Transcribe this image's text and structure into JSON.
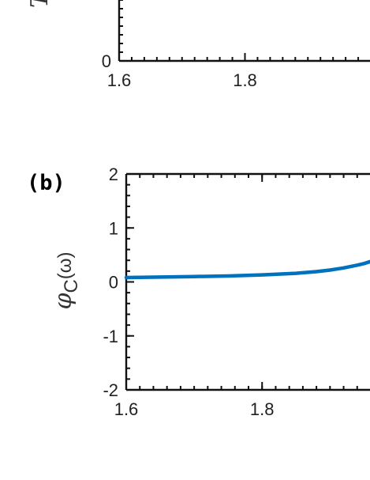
{
  "chart_data": [
    {
      "panel": "",
      "type": "line",
      "xlim": [
        1.6,
        2.0
      ],
      "ylim": [
        0,
        1
      ],
      "x_ticks": [
        {
          "value": 1.6,
          "label": "1.6"
        },
        {
          "value": 1.8,
          "label": "1.8"
        }
      ],
      "y_ticks": [
        {
          "value": 0,
          "label": "0"
        }
      ],
      "ylabel_fragment": "T",
      "series": []
    },
    {
      "panel": "(b)",
      "type": "line",
      "xlim": [
        1.6,
        1.96
      ],
      "ylim": [
        -2,
        2
      ],
      "x_ticks": [
        {
          "value": 1.6,
          "label": "1.6"
        },
        {
          "value": 1.8,
          "label": "1.8"
        }
      ],
      "y_ticks": [
        {
          "value": 2,
          "label": "2"
        },
        {
          "value": 1,
          "label": "1"
        },
        {
          "value": 0,
          "label": "0"
        },
        {
          "value": -1,
          "label": "-1"
        },
        {
          "value": -2,
          "label": "-2"
        }
      ],
      "ylabel": {
        "symbol": "φ",
        "subscript": "C",
        "argument": "(ω)"
      },
      "series": [
        {
          "color": "#0072BD",
          "x": [
            1.6,
            1.65,
            1.7,
            1.75,
            1.8,
            1.85,
            1.88,
            1.9,
            1.92,
            1.94,
            1.95,
            1.96
          ],
          "y": [
            0.08,
            0.09,
            0.1,
            0.11,
            0.13,
            0.16,
            0.19,
            0.22,
            0.26,
            0.31,
            0.34,
            0.38
          ]
        }
      ]
    }
  ]
}
